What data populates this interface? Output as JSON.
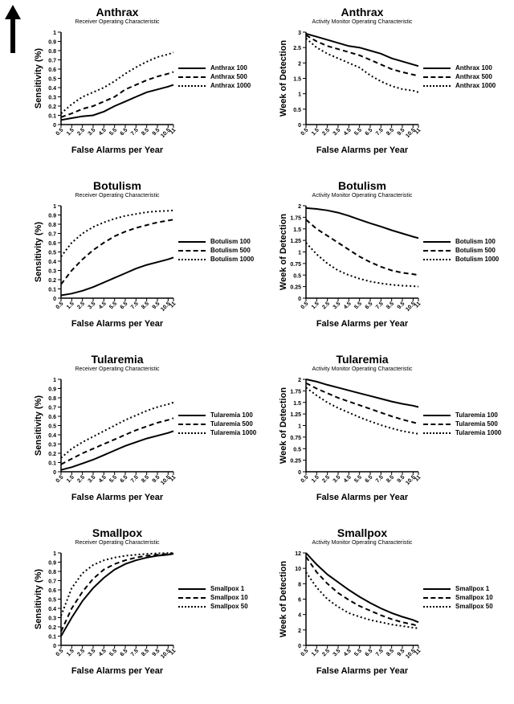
{
  "figure": {
    "background_color": "#ffffff",
    "ink_color": "#000000",
    "title_fontsize": 14,
    "subtitle_fontsize": 7,
    "axis_label_fontsize": 11,
    "tick_fontsize": 7,
    "legend_fontsize": 8,
    "line_width": 2,
    "dash_patterns": {
      "solid": "",
      "dashed": "6,4",
      "dotted": "2,3"
    },
    "xlabel": "False Alarms per Year",
    "x_ticks": [
      "0.5",
      "1.5",
      "2.5",
      "3.5",
      "4.5",
      "5.5",
      "6.5",
      "7.5",
      "8.5",
      "9.5",
      "10.5",
      "11"
    ],
    "arrow": {
      "color": "#000000",
      "width": 8,
      "head_width": 20,
      "length": 56
    }
  },
  "panels": [
    {
      "id": "anthrax_roc",
      "title": "Anthrax",
      "subtitle": "Receiver Operating Characteristic",
      "ylabel": "Sensitivity (%)",
      "ylim": [
        0,
        1.0
      ],
      "y_ticks": [
        "0",
        "0.1",
        "0.2",
        "0.3",
        "0.4",
        "0.5",
        "0.6",
        "0.7",
        "0.8",
        "0.9",
        "1"
      ],
      "legend": [
        "Anthrax 100",
        "Anthrax 500",
        "Anthrax 1000"
      ],
      "series": [
        {
          "name": "Anthrax 100",
          "style": "solid",
          "x": [
            0.5,
            1.5,
            2.5,
            3.5,
            4.5,
            5.5,
            6.5,
            7.5,
            8.5,
            9.5,
            10.5,
            11
          ],
          "y": [
            0.05,
            0.07,
            0.09,
            0.1,
            0.14,
            0.2,
            0.25,
            0.3,
            0.35,
            0.38,
            0.41,
            0.43
          ]
        },
        {
          "name": "Anthrax 500",
          "style": "dashed",
          "x": [
            0.5,
            1.5,
            2.5,
            3.5,
            4.5,
            5.5,
            6.5,
            7.5,
            8.5,
            9.5,
            10.5,
            11
          ],
          "y": [
            0.08,
            0.12,
            0.17,
            0.2,
            0.25,
            0.3,
            0.38,
            0.43,
            0.48,
            0.52,
            0.55,
            0.57
          ]
        },
        {
          "name": "Anthrax 1000",
          "style": "dotted",
          "x": [
            0.5,
            1.5,
            2.5,
            3.5,
            4.5,
            5.5,
            6.5,
            7.5,
            8.5,
            9.5,
            10.5,
            11
          ],
          "y": [
            0.12,
            0.22,
            0.3,
            0.35,
            0.4,
            0.47,
            0.55,
            0.62,
            0.68,
            0.73,
            0.76,
            0.78
          ]
        }
      ]
    },
    {
      "id": "anthrax_amoc",
      "title": "Anthrax",
      "subtitle": "Activity Monitor Operating Characteristic",
      "ylabel": "Week of Detection",
      "ylim": [
        0,
        3.0
      ],
      "y_ticks": [
        "0",
        "0.5",
        "1",
        "1.5",
        "2",
        "2.5",
        "3"
      ],
      "legend": [
        "Anthrax 100",
        "Anthrax 500",
        "Anthrax 1000"
      ],
      "series": [
        {
          "name": "Anthrax 100",
          "style": "solid",
          "x": [
            0.5,
            1.5,
            2.5,
            3.5,
            4.5,
            5.5,
            6.5,
            7.5,
            8.5,
            9.5,
            10.5,
            11
          ],
          "y": [
            2.95,
            2.85,
            2.75,
            2.65,
            2.55,
            2.5,
            2.4,
            2.3,
            2.15,
            2.05,
            1.95,
            1.9
          ]
        },
        {
          "name": "Anthrax 500",
          "style": "dashed",
          "x": [
            0.5,
            1.5,
            2.5,
            3.5,
            4.5,
            5.5,
            6.5,
            7.5,
            8.5,
            9.5,
            10.5,
            11
          ],
          "y": [
            2.9,
            2.7,
            2.55,
            2.45,
            2.35,
            2.25,
            2.1,
            1.95,
            1.8,
            1.7,
            1.62,
            1.58
          ]
        },
        {
          "name": "Anthrax 1000",
          "style": "dotted",
          "x": [
            0.5,
            1.5,
            2.5,
            3.5,
            4.5,
            5.5,
            6.5,
            7.5,
            8.5,
            9.5,
            10.5,
            11
          ],
          "y": [
            2.8,
            2.5,
            2.3,
            2.15,
            2.0,
            1.85,
            1.6,
            1.4,
            1.25,
            1.15,
            1.1,
            1.05
          ]
        }
      ]
    },
    {
      "id": "botulism_roc",
      "title": "Botulism",
      "subtitle": "Receiver Operating Characteristic",
      "ylabel": "Sensitivity (%)",
      "ylim": [
        0,
        1.0
      ],
      "y_ticks": [
        "0",
        "0.1",
        "0.2",
        "0.3",
        "0.4",
        "0.5",
        "0.6",
        "0.7",
        "0.8",
        "0.9",
        "1"
      ],
      "legend": [
        "Botulism 100",
        "Botulism 500",
        "Botulism 1000"
      ],
      "series": [
        {
          "name": "Botulism 100",
          "style": "solid",
          "x": [
            0.5,
            1.5,
            2.5,
            3.5,
            4.5,
            5.5,
            6.5,
            7.5,
            8.5,
            9.5,
            10.5,
            11
          ],
          "y": [
            0.03,
            0.05,
            0.08,
            0.12,
            0.17,
            0.22,
            0.27,
            0.32,
            0.36,
            0.39,
            0.42,
            0.44
          ]
        },
        {
          "name": "Botulism 500",
          "style": "dashed",
          "x": [
            0.5,
            1.5,
            2.5,
            3.5,
            4.5,
            5.5,
            6.5,
            7.5,
            8.5,
            9.5,
            10.5,
            11
          ],
          "y": [
            0.15,
            0.3,
            0.42,
            0.52,
            0.6,
            0.67,
            0.72,
            0.76,
            0.79,
            0.82,
            0.84,
            0.85
          ]
        },
        {
          "name": "Botulism 1000",
          "style": "dotted",
          "x": [
            0.5,
            1.5,
            2.5,
            3.5,
            4.5,
            5.5,
            6.5,
            7.5,
            8.5,
            9.5,
            10.5,
            11
          ],
          "y": [
            0.45,
            0.6,
            0.7,
            0.77,
            0.82,
            0.86,
            0.89,
            0.91,
            0.93,
            0.94,
            0.945,
            0.95
          ]
        }
      ]
    },
    {
      "id": "botulism_amoc",
      "title": "Botulism",
      "subtitle": "Activity Monitor Operating Characteristic",
      "ylabel": "Week of Detection",
      "ylim": [
        0,
        2.0
      ],
      "y_ticks": [
        "0",
        "0.25",
        "0.5",
        "0.75",
        "1",
        "1.25",
        "1.5",
        "1.75",
        "2"
      ],
      "legend": [
        "Botulism 100",
        "Botulism 500",
        "Botulism 1000"
      ],
      "series": [
        {
          "name": "Botulism 100",
          "style": "solid",
          "x": [
            0.5,
            1.5,
            2.5,
            3.5,
            4.5,
            5.5,
            6.5,
            7.5,
            8.5,
            9.5,
            10.5,
            11
          ],
          "y": [
            1.95,
            1.93,
            1.9,
            1.85,
            1.78,
            1.7,
            1.62,
            1.55,
            1.47,
            1.4,
            1.33,
            1.3
          ]
        },
        {
          "name": "Botulism 500",
          "style": "dashed",
          "x": [
            0.5,
            1.5,
            2.5,
            3.5,
            4.5,
            5.5,
            6.5,
            7.5,
            8.5,
            9.5,
            10.5,
            11
          ],
          "y": [
            1.7,
            1.5,
            1.35,
            1.2,
            1.05,
            0.9,
            0.78,
            0.68,
            0.6,
            0.55,
            0.52,
            0.5
          ]
        },
        {
          "name": "Botulism 1000",
          "style": "dotted",
          "x": [
            0.5,
            1.5,
            2.5,
            3.5,
            4.5,
            5.5,
            6.5,
            7.5,
            8.5,
            9.5,
            10.5,
            11
          ],
          "y": [
            1.2,
            0.95,
            0.75,
            0.6,
            0.5,
            0.42,
            0.36,
            0.32,
            0.29,
            0.27,
            0.26,
            0.25
          ]
        }
      ]
    },
    {
      "id": "tularemia_roc",
      "title": "Tularemia",
      "subtitle": "Receiver Operating Characteristic",
      "ylabel": "Sensitivity (%)",
      "ylim": [
        0,
        1.0
      ],
      "y_ticks": [
        "0",
        "0.1",
        "0.2",
        "0.3",
        "0.4",
        "0.5",
        "0.6",
        "0.7",
        "0.8",
        "0.9",
        "1"
      ],
      "legend": [
        "Tularemia 100",
        "Tularemia 500",
        "Tularemia 1000"
      ],
      "series": [
        {
          "name": "Tularemia 100",
          "style": "solid",
          "x": [
            0.5,
            1.5,
            2.5,
            3.5,
            4.5,
            5.5,
            6.5,
            7.5,
            8.5,
            9.5,
            10.5,
            11
          ],
          "y": [
            0.02,
            0.05,
            0.09,
            0.13,
            0.18,
            0.23,
            0.28,
            0.32,
            0.36,
            0.39,
            0.42,
            0.44
          ]
        },
        {
          "name": "Tularemia 500",
          "style": "dashed",
          "x": [
            0.5,
            1.5,
            2.5,
            3.5,
            4.5,
            5.5,
            6.5,
            7.5,
            8.5,
            9.5,
            10.5,
            11
          ],
          "y": [
            0.08,
            0.14,
            0.2,
            0.25,
            0.3,
            0.35,
            0.4,
            0.45,
            0.49,
            0.53,
            0.56,
            0.58
          ]
        },
        {
          "name": "Tularemia 1000",
          "style": "dotted",
          "x": [
            0.5,
            1.5,
            2.5,
            3.5,
            4.5,
            5.5,
            6.5,
            7.5,
            8.5,
            9.5,
            10.5,
            11
          ],
          "y": [
            0.15,
            0.25,
            0.32,
            0.38,
            0.44,
            0.5,
            0.56,
            0.61,
            0.66,
            0.7,
            0.73,
            0.75
          ]
        }
      ]
    },
    {
      "id": "tularemia_amoc",
      "title": "Tularemia",
      "subtitle": "Activity Monitor Operating Characteristic",
      "ylabel": "Week of Detection",
      "ylim": [
        0,
        2.0
      ],
      "y_ticks": [
        "0",
        "0.25",
        "0.5",
        "0.75",
        "1",
        "1.25",
        "1.5",
        "1.75",
        "2"
      ],
      "legend": [
        "Tularemia 100",
        "Tularemia 500",
        "Tularemia 1000"
      ],
      "series": [
        {
          "name": "Tularemia 100",
          "style": "solid",
          "x": [
            0.5,
            1.5,
            2.5,
            3.5,
            4.5,
            5.5,
            6.5,
            7.5,
            8.5,
            9.5,
            10.5,
            11
          ],
          "y": [
            2.0,
            1.95,
            1.88,
            1.82,
            1.76,
            1.7,
            1.64,
            1.58,
            1.52,
            1.47,
            1.43,
            1.4
          ]
        },
        {
          "name": "Tularemia 500",
          "style": "dashed",
          "x": [
            0.5,
            1.5,
            2.5,
            3.5,
            4.5,
            5.5,
            6.5,
            7.5,
            8.5,
            9.5,
            10.5,
            11
          ],
          "y": [
            1.92,
            1.8,
            1.7,
            1.6,
            1.52,
            1.44,
            1.36,
            1.28,
            1.2,
            1.13,
            1.07,
            1.04
          ]
        },
        {
          "name": "Tularemia 1000",
          "style": "dotted",
          "x": [
            0.5,
            1.5,
            2.5,
            3.5,
            4.5,
            5.5,
            6.5,
            7.5,
            8.5,
            9.5,
            10.5,
            11
          ],
          "y": [
            1.82,
            1.65,
            1.5,
            1.38,
            1.28,
            1.18,
            1.09,
            1.01,
            0.94,
            0.88,
            0.84,
            0.82
          ]
        }
      ]
    },
    {
      "id": "smallpox_roc",
      "title": "Smallpox",
      "subtitle": "Receiver Operating Characteristic",
      "ylabel": "Sensitivity (%)",
      "ylim": [
        0,
        1.0
      ],
      "y_ticks": [
        "0",
        "0.1",
        "0.2",
        "0.3",
        "0.4",
        "0.5",
        "0.6",
        "0.7",
        "0.8",
        "0.9",
        "1"
      ],
      "legend": [
        "Smallpox 1",
        "Smallpox 10",
        "Smallpox 50"
      ],
      "series": [
        {
          "name": "Smallpox 1",
          "style": "solid",
          "x": [
            0.5,
            1.5,
            2.5,
            3.5,
            4.5,
            5.5,
            6.5,
            7.5,
            8.5,
            9.5,
            10.5,
            11
          ],
          "y": [
            0.1,
            0.3,
            0.48,
            0.62,
            0.73,
            0.82,
            0.88,
            0.92,
            0.95,
            0.97,
            0.98,
            0.99
          ]
        },
        {
          "name": "Smallpox 10",
          "style": "dashed",
          "x": [
            0.5,
            1.5,
            2.5,
            3.5,
            4.5,
            5.5,
            6.5,
            7.5,
            8.5,
            9.5,
            10.5,
            11
          ],
          "y": [
            0.15,
            0.4,
            0.58,
            0.72,
            0.82,
            0.88,
            0.92,
            0.95,
            0.97,
            0.98,
            0.99,
            0.995
          ]
        },
        {
          "name": "Smallpox 50",
          "style": "dotted",
          "x": [
            0.5,
            1.5,
            2.5,
            3.5,
            4.5,
            5.5,
            6.5,
            7.5,
            8.5,
            9.5,
            10.5,
            11
          ],
          "y": [
            0.32,
            0.62,
            0.78,
            0.87,
            0.92,
            0.95,
            0.97,
            0.98,
            0.99,
            0.995,
            0.998,
            0.999
          ]
        }
      ]
    },
    {
      "id": "smallpox_amoc",
      "title": "Smallpox",
      "subtitle": "Activity Monitor Operating Characteristic",
      "ylabel": "Week of Detection",
      "ylim": [
        0,
        12
      ],
      "y_ticks": [
        "0",
        "2",
        "4",
        "6",
        "8",
        "10",
        "12"
      ],
      "legend": [
        "Smallpox 1",
        "Smallpox 10",
        "Smallpox 50"
      ],
      "series": [
        {
          "name": "Smallpox 1",
          "style": "solid",
          "x": [
            0.5,
            1.5,
            2.5,
            3.5,
            4.5,
            5.5,
            6.5,
            7.5,
            8.5,
            9.5,
            10.5,
            11
          ],
          "y": [
            12.0,
            10.5,
            9.2,
            8.2,
            7.2,
            6.3,
            5.5,
            4.8,
            4.2,
            3.7,
            3.3,
            3.0
          ]
        },
        {
          "name": "Smallpox 10",
          "style": "dashed",
          "x": [
            0.5,
            1.5,
            2.5,
            3.5,
            4.5,
            5.5,
            6.5,
            7.5,
            8.5,
            9.5,
            10.5,
            11
          ],
          "y": [
            11.5,
            9.5,
            8.0,
            6.8,
            5.9,
            5.1,
            4.5,
            3.9,
            3.4,
            3.0,
            2.7,
            2.5
          ]
        },
        {
          "name": "Smallpox 50",
          "style": "dotted",
          "x": [
            0.5,
            1.5,
            2.5,
            3.5,
            4.5,
            5.5,
            6.5,
            7.5,
            8.5,
            9.5,
            10.5,
            11
          ],
          "y": [
            9.5,
            7.5,
            6.0,
            5.0,
            4.2,
            3.7,
            3.3,
            3.0,
            2.7,
            2.5,
            2.3,
            2.2
          ]
        }
      ]
    }
  ]
}
